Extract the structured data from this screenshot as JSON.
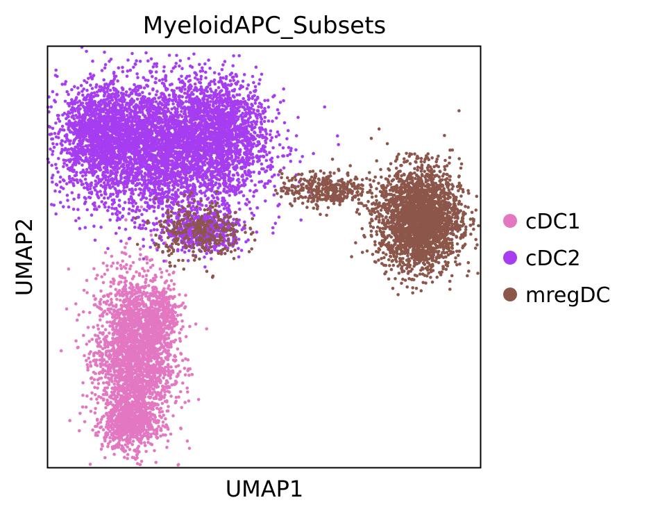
{
  "chart_data": {
    "type": "scatter",
    "title": "MyeloidAPC_Subsets",
    "xlabel": "UMAP1",
    "ylabel": "UMAP2",
    "ticks": "none",
    "grid": false,
    "legend": "right",
    "xlim": [
      0,
      10
    ],
    "ylim": [
      0,
      10
    ],
    "series": [
      {
        "name": "cDC1",
        "color": "#e377c2",
        "clusters": [
          {
            "center": [
              2.0,
              2.6
            ],
            "spread": [
              0.9,
              2.0
            ],
            "n": 2600
          },
          {
            "center": [
              1.9,
              1.0
            ],
            "spread": [
              0.55,
              0.45
            ],
            "n": 500
          },
          {
            "center": [
              2.6,
              3.6
            ],
            "spread": [
              0.5,
              0.7
            ],
            "n": 300
          }
        ]
      },
      {
        "name": "cDC2",
        "color": "#a63df0",
        "clusters": [
          {
            "center": [
              2.6,
              7.6
            ],
            "spread": [
              2.3,
              1.6
            ],
            "n": 4200
          },
          {
            "center": [
              1.2,
              8.0
            ],
            "spread": [
              0.8,
              1.0
            ],
            "n": 900
          },
          {
            "center": [
              4.0,
              8.0
            ],
            "spread": [
              1.0,
              1.2
            ],
            "n": 1000
          },
          {
            "center": [
              3.6,
              5.6
            ],
            "spread": [
              0.9,
              0.5
            ],
            "n": 500
          }
        ]
      },
      {
        "name": "mregDC",
        "color": "#8c564b",
        "clusters": [
          {
            "center": [
              8.6,
              5.9
            ],
            "spread": [
              0.95,
              1.2
            ],
            "n": 2600
          },
          {
            "center": [
              6.4,
              6.6
            ],
            "spread": [
              1.0,
              0.4
            ],
            "n": 380
          },
          {
            "center": [
              3.5,
              5.6
            ],
            "spread": [
              1.0,
              0.7
            ],
            "n": 320
          }
        ]
      }
    ]
  }
}
